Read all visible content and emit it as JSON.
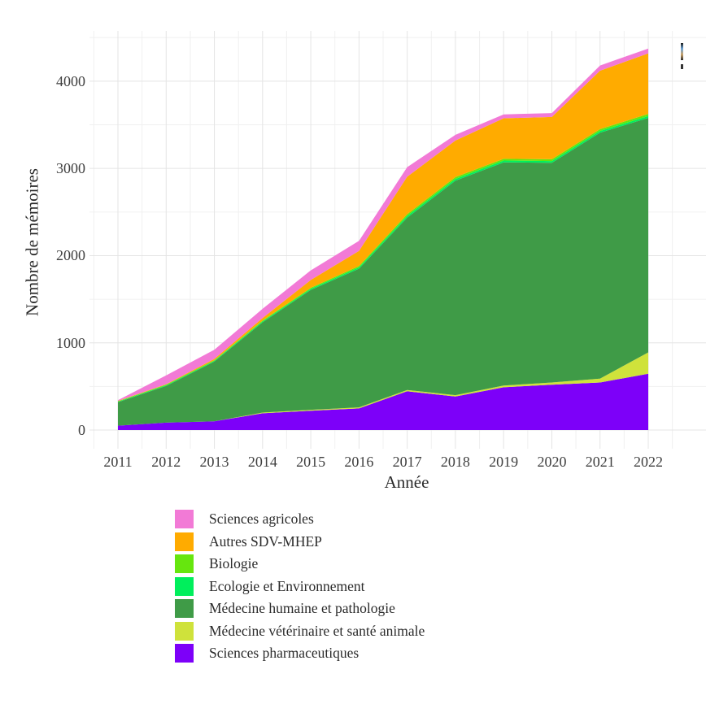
{
  "figure": {
    "kind": "static R/ggplot-style stacked area chart, clipped at right edge"
  },
  "chart_data": {
    "type": "area",
    "stacked": true,
    "title": "",
    "xlabel": "Année",
    "ylabel": "Nombre de mémoires",
    "x": [
      2011,
      2012,
      2013,
      2014,
      2015,
      2016,
      2017,
      2018,
      2019,
      2020,
      2021,
      2022
    ],
    "y_ticks": [
      0,
      1000,
      2000,
      3000,
      4000
    ],
    "y_minor_gridlines": [
      500,
      1500,
      2500,
      3500,
      4500
    ],
    "x_minor_gridlines": [
      2010.5,
      2011.5,
      2012.5,
      2013.5,
      2014.5,
      2015.5,
      2016.5,
      2017.5,
      2018.5,
      2019.5,
      2020.5,
      2021.5,
      2022.5
    ],
    "ylim": [
      0,
      4580
    ],
    "grid": "major and minor, light gray on white panel",
    "legend_position": "bottom-left",
    "series_note": "legend order top-to-bottom; stacking order bottom-to-top is the reverse (Sciences pharmaceutiques at base, Sciences agricoles on top)",
    "series": [
      {
        "name": "Sciences agricoles",
        "color": "#F27AD6",
        "values": [
          8,
          100,
          105,
          105,
          110,
          115,
          110,
          65,
          45,
          45,
          60,
          55
        ]
      },
      {
        "name": "Autres SDV-MHEP",
        "color": "#FFAB00",
        "values": [
          5,
          5,
          15,
          30,
          90,
          175,
          430,
          420,
          465,
          485,
          670,
          695
        ]
      },
      {
        "name": "Biologie",
        "color": "#66E60E",
        "values": [
          5,
          8,
          8,
          10,
          12,
          15,
          20,
          20,
          20,
          20,
          20,
          25
        ]
      },
      {
        "name": "Ecologie et Environnement",
        "color": "#00EF5C",
        "values": [
          5,
          8,
          8,
          10,
          12,
          15,
          20,
          20,
          20,
          20,
          20,
          20
        ]
      },
      {
        "name": "Médecine humaine et pathologie",
        "color": "#3F9B47",
        "values": [
          270,
          420,
          685,
          1035,
          1375,
          1590,
          1975,
          2460,
          2560,
          2520,
          2820,
          2690
        ]
      },
      {
        "name": "Médecine vétérinaire et santé animale",
        "color": "#CFE23B",
        "values": [
          0,
          0,
          0,
          8,
          10,
          12,
          15,
          15,
          20,
          25,
          45,
          245
        ]
      },
      {
        "name": "Sciences pharmaceutiques",
        "color": "#7D00F9",
        "values": [
          50,
          85,
          100,
          192,
          222,
          248,
          445,
          385,
          490,
          520,
          545,
          645
        ]
      }
    ],
    "totals_by_year": [
      343,
      626,
      921,
      1390,
      1831,
      2170,
      3015,
      3385,
      3620,
      3635,
      4180,
      4375
    ],
    "colors": {
      "grid_major": "#E4E4E4",
      "grid_minor": "#F0F0F0",
      "tick_text": "#3F3F3F",
      "axis_title_text": "#2A2A2A"
    }
  }
}
